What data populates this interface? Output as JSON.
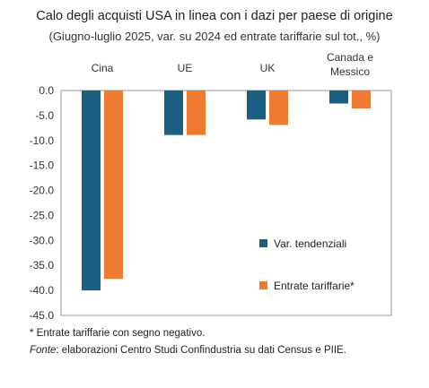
{
  "chart_data": {
    "type": "bar",
    "title": "Calo degli acquisti USA in linea con i dazi per paese di origine",
    "subtitle": "(Giugno-luglio 2025, var. su 2024 ed entrate tariffarie sul tot., %)",
    "categories": [
      "Cina",
      "UE",
      "UK",
      "Canada e Messico"
    ],
    "series": [
      {
        "name": "Var. tendenziali",
        "values": [
          -40.0,
          -8.9,
          -5.8,
          -2.6
        ],
        "color": "#1b5f82"
      },
      {
        "name": "Entrate tariffarie*",
        "values": [
          -37.7,
          -8.9,
          -6.9,
          -3.6
        ],
        "color": "#ee7b30"
      }
    ],
    "ylim": [
      -45,
      0
    ],
    "yticks": [
      "0.0",
      "-5.0",
      "-10.0",
      "-15.0",
      "-20.0",
      "-25.0",
      "-30.0",
      "-35.0",
      "-40.0",
      "-45.0"
    ],
    "xlabel": "",
    "ylabel": "",
    "legend_position": "bottom-right inside plot",
    "grid": false
  },
  "footnote": "* Entrate tariffarie con segno negativo.",
  "source": {
    "label": "Fonte",
    "text": ": elaborazioni Centro Studi Confindustria su dati Census e PIIE."
  }
}
